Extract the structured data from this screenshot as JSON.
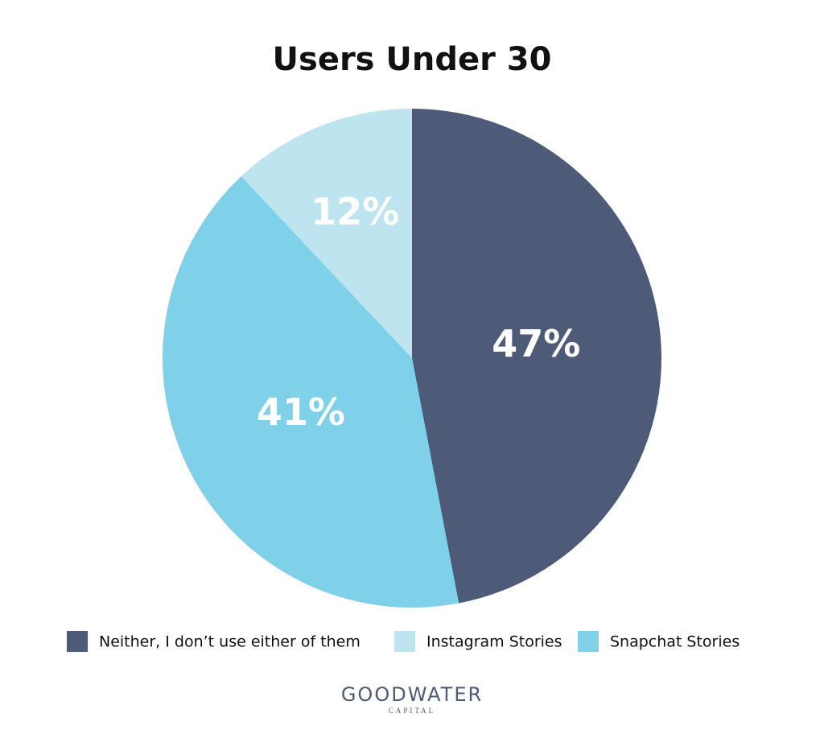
{
  "chart_data": {
    "type": "pie",
    "title": "Users Under 30",
    "categories": [
      "Neither, I don’t use either of them",
      "Instagram Stories",
      "Snapchat Stories"
    ],
    "values": [
      47,
      12,
      41
    ],
    "value_labels": [
      "47%",
      "12%",
      "41%"
    ],
    "colors": [
      "#4d5b78",
      "#bde4ef",
      "#7fd0e9"
    ]
  },
  "logo": {
    "name": "GOODWATER",
    "sub": "CAPITAL"
  }
}
